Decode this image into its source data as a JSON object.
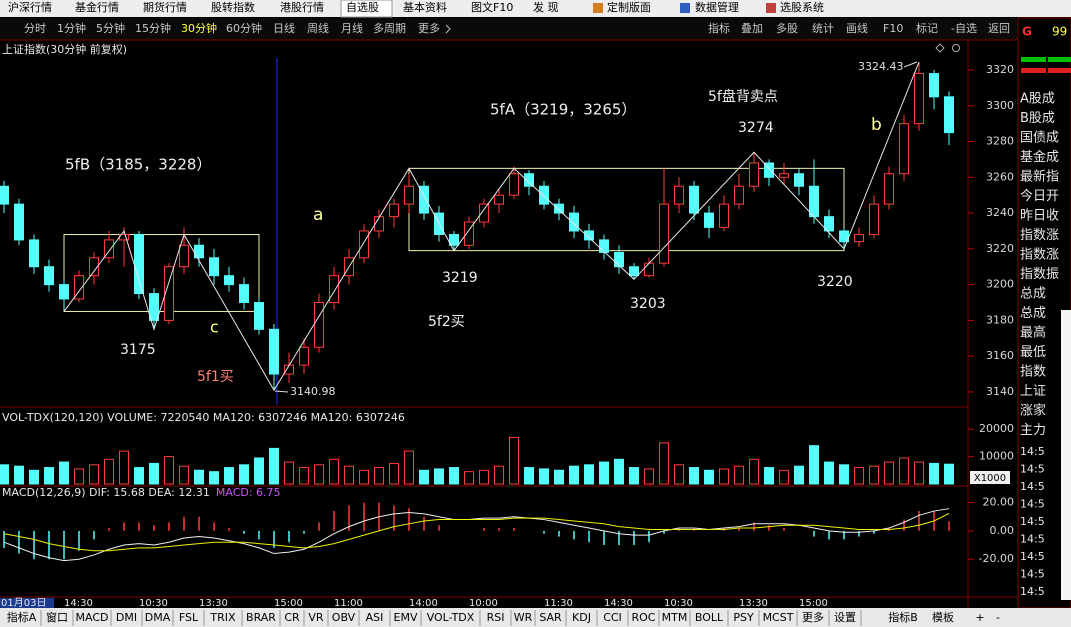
{
  "menu": [
    "沪深行情",
    "基金行情",
    "期货行情",
    "股转指数",
    "港股行情",
    "自选股",
    "基本资料",
    "图文F10",
    "发 现",
    "定制版面",
    "数据管理",
    "选股系统"
  ],
  "period_tabs": [
    "分时",
    "1分钟",
    "5分钟",
    "15分钟",
    "30分钟",
    "60分钟",
    "日线",
    "周线",
    "月线",
    "多周期",
    "更多"
  ],
  "tool_tabs": [
    "指标",
    "叠加",
    "多股",
    "统计",
    "画线",
    "F10",
    "标记",
    "-自选",
    "返回"
  ],
  "chart_title": "上证指数(30分钟 前复权)",
  "indicator_tabs": [
    "指标A",
    "窗口",
    "MACD",
    "DMI",
    "DMA",
    "FSL",
    "TRIX",
    "BRAR",
    "CR",
    "VR",
    "OBV",
    "ASI",
    "EMV",
    "VOL-TDX",
    "RSI",
    "WR",
    "SAR",
    "KDJ",
    "CCI",
    "ROC",
    "MTM",
    "BOLL",
    "PSY",
    "MCST",
    "更多",
    "设置"
  ],
  "template_tabs": [
    "指标B",
    "模板",
    "+",
    "-"
  ],
  "right_panel": {
    "code": "G",
    "price": "99",
    "items": [
      "A股成",
      "B股成",
      "国债成",
      "基金成",
      "最新指",
      "今日开",
      "昨日收",
      "指数涨",
      "指数涨",
      "指数振",
      "总成",
      "总成",
      "最高",
      "最低",
      "指数",
      "上证",
      "涨家",
      "主力"
    ],
    "times": [
      "14:5",
      "14:5",
      "14:5",
      "14:5",
      "14:5",
      "14:5",
      "14:5",
      "14:5",
      "14:5"
    ]
  },
  "chart_data": [
    {
      "type": "candlestick",
      "categories": [
        "01月03日",
        null,
        null,
        null,
        "14:30",
        null,
        null,
        null,
        null,
        "10:30",
        null,
        null,
        null,
        "13:30",
        null,
        null,
        null,
        null,
        "15:00",
        null,
        null,
        null,
        "11:00",
        null,
        null,
        null,
        null,
        "14:00",
        null,
        null,
        null,
        "10:00",
        null,
        null,
        null,
        null,
        "11:30",
        null,
        null,
        null,
        "14:30",
        null,
        null,
        null,
        "10:30",
        null,
        null,
        null,
        null,
        "13:30",
        null,
        null,
        null,
        "15:00",
        null,
        null,
        null,
        null,
        null,
        null,
        null,
        null,
        null,
        null
      ],
      "open": [
        3255,
        3245,
        3225,
        3210,
        3200,
        3192,
        3205,
        3215,
        3225,
        3228,
        3195,
        3180,
        3210,
        3222,
        3215,
        3205,
        3200,
        3190,
        3175,
        3150,
        3155,
        3165,
        3190,
        3205,
        3215,
        3230,
        3238,
        3245,
        3255,
        3240,
        3228,
        3222,
        3235,
        3245,
        3250,
        3262,
        3255,
        3245,
        3240,
        3230,
        3225,
        3218,
        3210,
        3205,
        3212,
        3245,
        3255,
        3240,
        3232,
        3245,
        3255,
        3268,
        3260,
        3262,
        3255,
        3238,
        3230,
        3224,
        3228,
        3245,
        3262,
        3290,
        3318,
        3305
      ],
      "high": [
        3258,
        3248,
        3228,
        3214,
        3203,
        3208,
        3218,
        3230,
        3232,
        3230,
        3198,
        3212,
        3232,
        3226,
        3220,
        3210,
        3204,
        3193,
        3178,
        3162,
        3170,
        3195,
        3210,
        3220,
        3234,
        3242,
        3248,
        3262,
        3258,
        3244,
        3230,
        3238,
        3248,
        3254,
        3266,
        3264,
        3258,
        3248,
        3244,
        3234,
        3228,
        3222,
        3212,
        3215,
        3265,
        3260,
        3258,
        3244,
        3250,
        3262,
        3274,
        3270,
        3268,
        3265,
        3270,
        3242,
        3232,
        3232,
        3250,
        3266,
        3295,
        3324.43,
        3320,
        3308
      ],
      "low": [
        3240,
        3222,
        3206,
        3196,
        3186,
        3190,
        3200,
        3212,
        3210,
        3192,
        3175,
        3178,
        3206,
        3210,
        3200,
        3196,
        3186,
        3172,
        3140.98,
        3145,
        3150,
        3162,
        3186,
        3200,
        3212,
        3226,
        3232,
        3240,
        3236,
        3224,
        3219,
        3220,
        3232,
        3240,
        3248,
        3250,
        3242,
        3236,
        3226,
        3220,
        3214,
        3206,
        3203,
        3204,
        3210,
        3240,
        3236,
        3226,
        3230,
        3242,
        3252,
        3255,
        3256,
        3250,
        3234,
        3226,
        3220,
        3221,
        3226,
        3242,
        3258,
        3286,
        3298,
        3278
      ],
      "close": [
        3245,
        3225,
        3210,
        3200,
        3192,
        3205,
        3215,
        3225,
        3228,
        3195,
        3180,
        3210,
        3222,
        3215,
        3205,
        3200,
        3190,
        3175,
        3150,
        3155,
        3165,
        3190,
        3205,
        3215,
        3230,
        3238,
        3245,
        3255,
        3240,
        3228,
        3222,
        3235,
        3245,
        3250,
        3262,
        3255,
        3245,
        3240,
        3230,
        3225,
        3218,
        3210,
        3205,
        3212,
        3245,
        3255,
        3240,
        3232,
        3245,
        3255,
        3268,
        3260,
        3262,
        3255,
        3238,
        3230,
        3224,
        3228,
        3245,
        3262,
        3290,
        3318,
        3305,
        3285
      ],
      "up_color": "#ff3c3c",
      "down_color": "#54fcfc",
      "ylim": [
        3132.7,
        3326.7
      ],
      "yticks": [
        3140,
        3160,
        3180,
        3200,
        3220,
        3240,
        3260,
        3280,
        3300,
        3320
      ],
      "boxes": [
        {
          "from": 4,
          "to": 17,
          "low": 3185,
          "high": 3228
        },
        {
          "from": 27,
          "to": 56,
          "low": 3219,
          "high": 3265
        }
      ],
      "zigzag": {
        "index": [
          4,
          8,
          10,
          12,
          18,
          27,
          30,
          34,
          42,
          50,
          56,
          61
        ],
        "price": [
          3185,
          3230,
          3175,
          3228,
          3140.98,
          3265,
          3219,
          3265,
          3203,
          3274,
          3220,
          3324.43
        ]
      },
      "annotations": [
        "5fB（3185，3228）",
        "3175",
        "c",
        "5f1买",
        "a",
        "5fA（3219，3265）",
        "3219",
        "5f2买",
        "3203",
        "5f盘背卖点",
        "3274",
        "3220",
        "b",
        "3324.43",
        "3140.98"
      ]
    },
    {
      "type": "bar",
      "header": "VOL-TDX(120,120)  VOLUME: 7220540  MA120: 6307246  MA120: 6307246",
      "unit": "X1000",
      "values": [
        7000,
        6500,
        5000,
        6000,
        8000,
        5500,
        7000,
        9000,
        12000,
        6000,
        7500,
        10000,
        6500,
        5000,
        4500,
        6000,
        7000,
        9500,
        13000,
        8000,
        6000,
        7000,
        9000,
        6500,
        5000,
        6000,
        7500,
        12000,
        5000,
        5500,
        6000,
        4500,
        5000,
        6500,
        17000,
        6000,
        5500,
        5000,
        6500,
        7000,
        8000,
        9000,
        6000,
        5500,
        15000,
        7000,
        6000,
        5000,
        5500,
        6500,
        9000,
        6000,
        5000,
        6500,
        14000,
        8000,
        7000,
        6000,
        6500,
        8000,
        9500,
        8000,
        7500,
        7220.54
      ],
      "ylim": [
        0,
        27000
      ],
      "yticks": [
        10000,
        20000
      ]
    },
    {
      "type": "macd",
      "header": "MACD(12,26,9)  DIF: 15.68  DEA: 12.31",
      "header_macd": "MACD: 6.75",
      "series": [
        {
          "name": "DIF",
          "color": "#f0f0f0",
          "values": [
            -8,
            -12,
            -16,
            -19,
            -21,
            -20,
            -17,
            -13,
            -10,
            -9,
            -10,
            -8,
            -5,
            -4,
            -5,
            -7,
            -9,
            -12,
            -16,
            -15,
            -13,
            -8,
            -2,
            3,
            7,
            10,
            12,
            13,
            12,
            10,
            8,
            8,
            9,
            9,
            10,
            9,
            8,
            6,
            4,
            2,
            0,
            -2,
            -3,
            -3,
            0,
            2,
            2,
            1,
            2,
            3,
            5,
            5,
            5,
            4,
            2,
            0,
            -1,
            -1,
            0,
            2,
            6,
            11,
            14,
            15.68
          ]
        },
        {
          "name": "DEA",
          "color": "#f0f000",
          "values": [
            -2,
            -4,
            -6,
            -9,
            -11,
            -13,
            -14,
            -14,
            -13,
            -12,
            -12,
            -11,
            -10,
            -9,
            -8,
            -8,
            -8,
            -9,
            -10,
            -11,
            -12,
            -11,
            -9,
            -6,
            -3,
            0,
            3,
            5,
            7,
            8,
            8,
            8,
            8,
            8,
            9,
            9,
            9,
            8,
            7,
            6,
            5,
            3,
            2,
            1,
            1,
            1,
            1,
            1,
            1,
            2,
            2,
            3,
            4,
            4,
            4,
            3,
            2,
            1,
            1,
            1,
            2,
            4,
            7,
            12.31
          ]
        }
      ],
      "values": [
        -12,
        -16,
        -20,
        -20,
        -20,
        -14,
        -6,
        2,
        6,
        6,
        4,
        6,
        10,
        10,
        6,
        2,
        -2,
        -6,
        -12,
        -8,
        -2,
        6,
        14,
        18,
        20,
        20,
        18,
        16,
        10,
        4,
        0,
        0,
        2,
        2,
        2,
        0,
        -2,
        -4,
        -6,
        -8,
        -10,
        -10,
        -10,
        -8,
        -2,
        2,
        2,
        0,
        2,
        2,
        6,
        4,
        2,
        0,
        -4,
        -6,
        -6,
        -4,
        -2,
        2,
        8,
        14,
        14,
        6.75
      ],
      "ylim": [
        -46,
        31
      ],
      "yticks": [
        {
          "value": -20,
          "label": "-20.00"
        },
        {
          "value": 0,
          "label": "0.00"
        },
        {
          "value": 20,
          "label": "20.00"
        }
      ]
    }
  ]
}
